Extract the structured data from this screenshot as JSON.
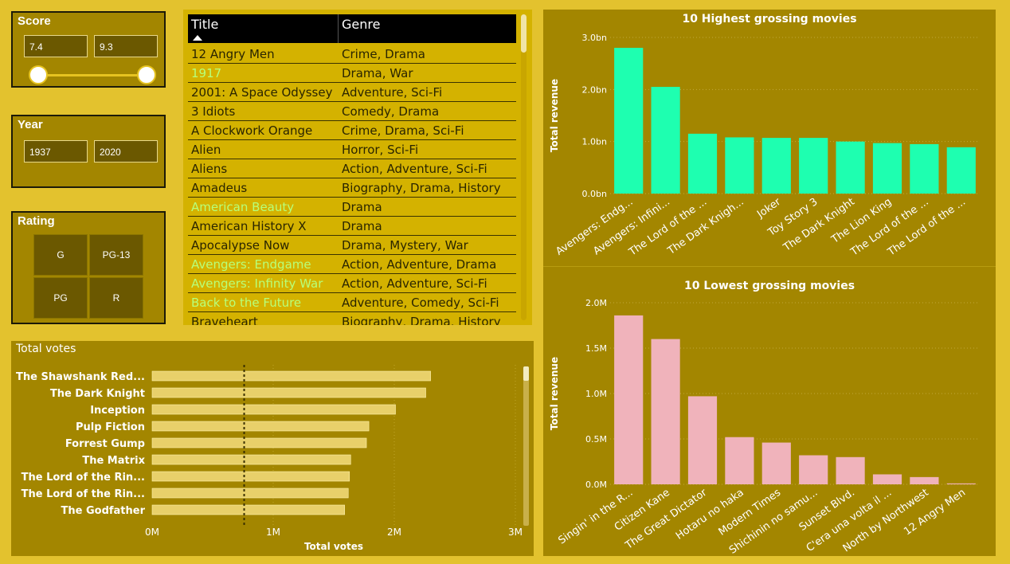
{
  "score": {
    "title": "Score",
    "min_value": "7.4",
    "max_value": "9.3",
    "range_min": 7.4,
    "range_max": 9.3,
    "selected_low_fraction": 0,
    "selected_high_fraction": 1
  },
  "year": {
    "title": "Year",
    "min_value": "1937",
    "max_value": "2020"
  },
  "rating": {
    "title": "Rating",
    "options": [
      "G",
      "PG-13",
      "PG",
      "R"
    ]
  },
  "movies_table": {
    "columns": [
      "Title",
      "Genre"
    ],
    "highlight_color": "#b7ff7a",
    "rows": [
      {
        "title": "12 Angry Men",
        "genre": "Crime, Drama",
        "highlight": false
      },
      {
        "title": "1917",
        "genre": "Drama, War",
        "highlight": true
      },
      {
        "title": "2001: A Space Odyssey",
        "genre": "Adventure, Sci-Fi",
        "highlight": false
      },
      {
        "title": "3 Idiots",
        "genre": "Comedy, Drama",
        "highlight": false
      },
      {
        "title": "A Clockwork Orange",
        "genre": "Crime, Drama, Sci-Fi",
        "highlight": false
      },
      {
        "title": "Alien",
        "genre": "Horror, Sci-Fi",
        "highlight": false
      },
      {
        "title": "Aliens",
        "genre": "Action, Adventure, Sci-Fi",
        "highlight": false
      },
      {
        "title": "Amadeus",
        "genre": "Biography, Drama, History",
        "highlight": false
      },
      {
        "title": "American Beauty",
        "genre": "Drama",
        "highlight": true
      },
      {
        "title": "American History X",
        "genre": "Drama",
        "highlight": false
      },
      {
        "title": "Apocalypse Now",
        "genre": "Drama, Mystery, War",
        "highlight": false
      },
      {
        "title": "Avengers: Endgame",
        "genre": "Action, Adventure, Drama",
        "highlight": true
      },
      {
        "title": "Avengers: Infinity War",
        "genre": "Action, Adventure, Sci-Fi",
        "highlight": true
      },
      {
        "title": "Back to the Future",
        "genre": "Adventure, Comedy, Sci-Fi",
        "highlight": true
      },
      {
        "title": "Braveheart",
        "genre": "Biography, Drama, History",
        "highlight": false
      }
    ]
  },
  "chart_data": [
    {
      "type": "bar",
      "orientation": "horizontal",
      "title": "Total votes",
      "xlabel": "Total votes",
      "ylabel": "",
      "categories": [
        "The Shawshank Red...",
        "The Dark Knight",
        "Inception",
        "Pulp Fiction",
        "Forrest Gump",
        "The Matrix",
        "The Lord of the Rin...",
        "The Lord of the Rin...",
        "The Godfather"
      ],
      "values": [
        2300000,
        2260000,
        2010000,
        1790000,
        1770000,
        1640000,
        1630000,
        1620000,
        1590000
      ],
      "reference_line": 760000,
      "xlim": [
        0,
        3000000
      ],
      "xticks": [
        "0M",
        "1M",
        "2M",
        "3M"
      ],
      "bar_color": "#e8d06a",
      "grid": true
    },
    {
      "type": "bar",
      "title": "10 Highest grossing movies",
      "xlabel": "",
      "ylabel": "Total revenue",
      "categories": [
        "Avengers: Endg...",
        "Avengers: Infini...",
        "The Lord of the ...",
        "The Dark Knigh...",
        "Joker",
        "Toy Story 3",
        "The Dark Knight",
        "The Lion King",
        "The Lord of the ...",
        "The Lord of the ..."
      ],
      "values": [
        2.8,
        2.05,
        1.15,
        1.08,
        1.07,
        1.07,
        1.0,
        0.97,
        0.95,
        0.89
      ],
      "ylim": [
        0,
        3.0
      ],
      "yticks": [
        "0.0bn",
        "1.0bn",
        "2.0bn",
        "3.0bn"
      ],
      "bar_color": "#1effb0",
      "grid": true
    },
    {
      "type": "bar",
      "title": "10 Lowest grossing movies",
      "xlabel": "",
      "ylabel": "Total revenue",
      "categories": [
        "Singin' in the R...",
        "Citizen Kane",
        "The Great Dictator",
        "Hotaru no haka",
        "Modern Times",
        "Shichinin no samu...",
        "Sunset Blvd.",
        "C'era una volta il ...",
        "North by Northwest",
        "12 Angry Men"
      ],
      "values": [
        1.86,
        1.6,
        0.97,
        0.52,
        0.46,
        0.32,
        0.3,
        0.11,
        0.08,
        0.01
      ],
      "ylim": [
        0,
        2.0
      ],
      "yticks": [
        "0.0M",
        "0.5M",
        "1.0M",
        "1.5M",
        "2.0M"
      ],
      "bar_color": "#f0b3bb",
      "grid": true
    }
  ]
}
